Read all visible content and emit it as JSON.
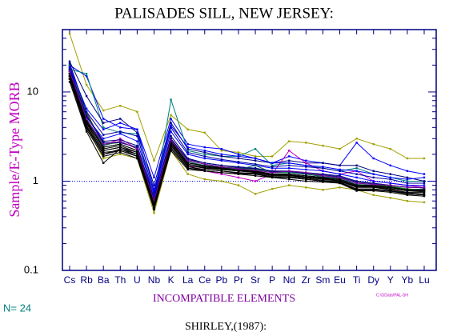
{
  "chart_data": {
    "type": "line",
    "title": "PALISADES SILL, NEW JERSEY:",
    "y_label": "Sample/E-Type MORB",
    "x_label": "INCOMPATIBLE ELEMENTS",
    "count_label": "N= 24",
    "source": "SHIRLEY,(1987):",
    "file_note": "C:\\GData\\PAL-SH",
    "log_y": true,
    "ylim": [
      0.1,
      50
    ],
    "yticks": [
      0.1,
      1,
      10
    ],
    "yminor": [
      0.2,
      0.3,
      0.4,
      0.5,
      0.6,
      0.7,
      0.8,
      0.9,
      2,
      3,
      4,
      5,
      6,
      7,
      8,
      9,
      20,
      30,
      40,
      50
    ],
    "reference_line": 1,
    "categories": [
      "Cs",
      "Rb",
      "Ba",
      "Th",
      "U",
      "Nb",
      "K",
      "La",
      "Ce",
      "Pb",
      "Pr",
      "Sr",
      "P",
      "Nd",
      "Zr",
      "Sm",
      "Eu",
      "Ti",
      "Dy",
      "Y",
      "Yb",
      "Lu"
    ],
    "series": [
      {
        "color": "#a0a000",
        "values": [
          45,
          12,
          6.2,
          7,
          6,
          1.7,
          5.5,
          3.8,
          3.5,
          2.2,
          2.1,
          1.9,
          1.9,
          2.8,
          2.7,
          2.5,
          2.3,
          3,
          2.6,
          2.3,
          1.8,
          1.8
        ]
      },
      {
        "color": "#0000ff",
        "values": [
          20,
          15,
          5,
          4,
          3.8,
          1.1,
          5,
          2.6,
          2.4,
          2.3,
          2,
          1.8,
          1.6,
          1.9,
          1.7,
          1.6,
          1.5,
          2.7,
          1.8,
          1.5,
          1.3,
          1.2
        ]
      },
      {
        "color": "#008080",
        "values": [
          18,
          16,
          4,
          3.5,
          3.4,
          0.6,
          8.2,
          2.2,
          2,
          1.9,
          1.9,
          2.3,
          1.5,
          1.6,
          1.5,
          1.4,
          1.3,
          1.4,
          1.2,
          1.1,
          1.0,
          1.0
        ]
      },
      {
        "color": "#000080",
        "values": [
          22,
          9,
          4.5,
          5,
          3.5,
          0.9,
          4.5,
          2.3,
          2.1,
          1.9,
          1.8,
          1.7,
          1.6,
          1.7,
          1.6,
          1.6,
          1.5,
          1.5,
          1.3,
          1.2,
          1.1,
          1.0
        ]
      },
      {
        "color": "#c000c0",
        "values": [
          17,
          6,
          2.5,
          3,
          2.3,
          0.55,
          3,
          1.5,
          1.3,
          1.2,
          1.1,
          1.0,
          1.2,
          2.2,
          1.6,
          1.3,
          1.2,
          1.3,
          1.0,
          0.95,
          0.9,
          0.85
        ]
      },
      {
        "color": "#a0a000",
        "values": [
          14,
          4,
          1.8,
          2.0,
          1.8,
          0.44,
          2.2,
          1.2,
          1.05,
          1.0,
          0.9,
          0.72,
          0.82,
          0.9,
          0.85,
          0.8,
          0.85,
          0.8,
          0.7,
          0.65,
          0.6,
          0.58
        ]
      },
      {
        "color": "#000000",
        "values": [
          16,
          5,
          2.4,
          2.6,
          2.2,
          0.6,
          2.8,
          1.6,
          1.5,
          1.4,
          1.35,
          1.3,
          1.2,
          1.2,
          1.15,
          1.1,
          1.05,
          0.9,
          0.9,
          0.85,
          0.8,
          0.8
        ]
      },
      {
        "color": "#000000",
        "values": [
          15,
          4.5,
          2.2,
          2.4,
          2.0,
          0.55,
          2.5,
          1.5,
          1.4,
          1.35,
          1.3,
          1.25,
          1.15,
          1.15,
          1.1,
          1.05,
          1.0,
          0.85,
          0.85,
          0.8,
          0.75,
          0.75
        ]
      },
      {
        "color": "#000000",
        "values": [
          13,
          3.6,
          1.6,
          2.3,
          1.9,
          0.5,
          2.3,
          1.4,
          1.3,
          1.25,
          1.2,
          1.2,
          1.1,
          1.1,
          1.05,
          1.0,
          0.95,
          0.8,
          0.8,
          0.78,
          0.72,
          0.7
        ]
      },
      {
        "color": "#000080",
        "values": [
          18,
          5.5,
          2.8,
          2.9,
          2.5,
          0.65,
          3.2,
          1.8,
          1.6,
          1.5,
          1.45,
          1.4,
          1.3,
          1.3,
          1.25,
          1.2,
          1.15,
          1.0,
          0.95,
          0.9,
          0.85,
          0.85
        ]
      },
      {
        "color": "#008000",
        "values": [
          20,
          5.8,
          2.6,
          2.7,
          2.4,
          0.6,
          3.0,
          1.7,
          1.55,
          1.45,
          1.4,
          1.35,
          1.25,
          1.25,
          1.2,
          1.15,
          1.1,
          0.95,
          0.92,
          0.88,
          0.82,
          0.8
        ]
      },
      {
        "color": "#0000ff",
        "values": [
          19,
          5.2,
          3.0,
          3.4,
          2.8,
          0.7,
          3.6,
          2.0,
          1.8,
          1.7,
          1.6,
          1.5,
          1.4,
          1.4,
          1.35,
          1.3,
          1.2,
          1.1,
          1.0,
          0.95,
          0.9,
          0.9
        ]
      },
      {
        "color": "#000000",
        "values": [
          17,
          4.8,
          2.3,
          2.5,
          2.1,
          0.58,
          2.7,
          1.55,
          1.45,
          1.4,
          1.3,
          1.28,
          1.18,
          1.18,
          1.12,
          1.08,
          1.02,
          0.88,
          0.87,
          0.82,
          0.78,
          0.76
        ]
      },
      {
        "color": "#000000",
        "values": [
          16,
          4.2,
          2.1,
          2.2,
          1.9,
          0.52,
          2.4,
          1.45,
          1.35,
          1.3,
          1.25,
          1.22,
          1.12,
          1.12,
          1.08,
          1.02,
          0.98,
          0.82,
          0.82,
          0.78,
          0.74,
          0.72
        ]
      },
      {
        "color": "#0000a0",
        "values": [
          21,
          6,
          3.3,
          3.6,
          3.2,
          0.75,
          4,
          2.1,
          1.9,
          1.75,
          1.65,
          1.55,
          1.45,
          1.5,
          1.45,
          1.4,
          1.3,
          1.2,
          1.1,
          1.05,
          0.95,
          0.95
        ]
      },
      {
        "color": "#000000",
        "values": [
          15,
          4,
          2.0,
          2.3,
          2.0,
          0.54,
          2.6,
          1.5,
          1.4,
          1.35,
          1.3,
          1.3,
          1.2,
          1.2,
          1.15,
          1.1,
          1.05,
          0.9,
          0.88,
          0.84,
          0.8,
          0.78
        ]
      },
      {
        "color": "#006060",
        "values": [
          17,
          5,
          2.5,
          2.8,
          2.3,
          0.62,
          2.9,
          1.65,
          1.5,
          1.45,
          1.35,
          1.5,
          1.25,
          1.25,
          1.2,
          1.12,
          1.08,
          0.92,
          0.9,
          0.86,
          0.8,
          0.82
        ]
      },
      {
        "color": "#000000",
        "values": [
          14,
          3.8,
          1.9,
          2.1,
          1.8,
          0.5,
          2.2,
          1.35,
          1.3,
          1.25,
          1.2,
          1.15,
          1.1,
          1.05,
          1.0,
          0.98,
          0.95,
          0.78,
          0.78,
          0.75,
          0.7,
          0.68
        ]
      },
      {
        "color": "#000080",
        "values": [
          18,
          5.4,
          2.7,
          2.7,
          2.4,
          0.62,
          3.0,
          1.75,
          1.6,
          1.5,
          1.42,
          1.38,
          1.28,
          1.28,
          1.22,
          1.18,
          1.12,
          0.98,
          0.94,
          0.9,
          0.86,
          0.84
        ]
      },
      {
        "color": "#000000",
        "values": [
          16,
          4.6,
          2.4,
          2.6,
          2.2,
          0.57,
          2.7,
          1.6,
          1.48,
          1.42,
          1.33,
          1.3,
          1.2,
          1.2,
          1.15,
          1.1,
          1.05,
          0.9,
          0.9,
          0.86,
          0.8,
          0.8
        ]
      },
      {
        "color": "#8000a0",
        "values": [
          17,
          5,
          2.6,
          2.8,
          2.3,
          0.6,
          2.9,
          1.7,
          1.55,
          1.45,
          1.38,
          1.32,
          1.25,
          1.3,
          1.25,
          1.15,
          1.1,
          0.95,
          0.92,
          0.9,
          0.85,
          0.85
        ]
      },
      {
        "color": "#000000",
        "values": [
          15,
          4.4,
          2.2,
          2.4,
          2.1,
          0.56,
          2.5,
          1.5,
          1.42,
          1.38,
          1.3,
          1.27,
          1.17,
          1.17,
          1.1,
          1.06,
          1.02,
          0.86,
          0.86,
          0.82,
          0.78,
          0.78
        ]
      },
      {
        "color": "#0000ff",
        "values": [
          19,
          6.5,
          3.8,
          4.5,
          3.8,
          0.8,
          4.2,
          2.4,
          2.2,
          2.0,
          1.9,
          1.8,
          1.6,
          1.6,
          1.5,
          1.45,
          1.35,
          1.3,
          1.2,
          1.1,
          1.05,
          1.1
        ]
      },
      {
        "color": "#000000",
        "values": [
          14,
          4.1,
          2.0,
          2.2,
          1.9,
          0.48,
          2.3,
          1.4,
          1.35,
          1.3,
          1.22,
          1.2,
          1.12,
          1.1,
          1.05,
          1.0,
          0.97,
          0.8,
          0.8,
          0.77,
          0.72,
          0.7
        ]
      }
    ]
  }
}
